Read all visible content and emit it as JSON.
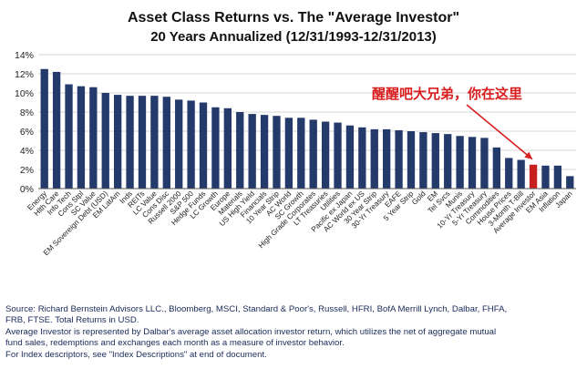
{
  "chart_data": {
    "type": "bar",
    "title": "Asset Class Returns vs. The \"Average Investor\"",
    "subtitle": "20 Years Annualized (12/31/1993-12/31/2013)",
    "xlabel": "",
    "ylabel": "",
    "ylim": [
      0,
      14
    ],
    "yticks": [
      "0%",
      "2%",
      "4%",
      "6%",
      "8%",
      "10%",
      "12%",
      "14%"
    ],
    "grid": true,
    "categories": [
      "Energy",
      "Hlth Care",
      "Info Tech",
      "Cons Stpl",
      "SC Value",
      "EM Sovereign Debt (USD)",
      "EM LatAm",
      "Inds",
      "REITs",
      "LC Value",
      "Cons Disc",
      "Russell 2000",
      "S&P 500",
      "Hedge Funds",
      "LC Growth",
      "Europe",
      "Materials",
      "US High Yield",
      "Financials",
      "10 Year Strip",
      "AC World",
      "SC Growth",
      "High Grade Corporates",
      "LT Treasuries",
      "Utilities",
      "Pacific ex Japan",
      "AC World ex US",
      "30 Year Strip",
      "30-Yr Treasury",
      "EAFE",
      "5 Year Strip",
      "Gold",
      "EM",
      "Tel Svcs",
      "Munis",
      "10-Yr Treasury",
      "5-Yr Treasury",
      "Commodities",
      "House Prices",
      "3-Month T-Bill",
      "Average Investor",
      "EM Asia",
      "Inflation",
      "Japan"
    ],
    "values": [
      12.5,
      12.2,
      10.9,
      10.7,
      10.6,
      10.0,
      9.8,
      9.7,
      9.7,
      9.7,
      9.6,
      9.3,
      9.2,
      9.0,
      8.5,
      8.4,
      8.0,
      7.8,
      7.7,
      7.6,
      7.4,
      7.4,
      7.2,
      7.0,
      6.9,
      6.6,
      6.4,
      6.2,
      6.2,
      6.1,
      6.0,
      5.9,
      5.8,
      5.7,
      5.5,
      5.4,
      5.3,
      4.3,
      3.2,
      3.0,
      2.5,
      2.4,
      2.4,
      1.3
    ],
    "highlight_index": 40,
    "bar_color": "#243a6b",
    "highlight_color": "#c8201e",
    "annotation": "醒醒吧大兄弟，你在这里",
    "annotation_color": "#d81e1e"
  },
  "footer": {
    "line1": "Source: Richard Bernstein Advisors LLC., Bloomberg, MSCI, Standard & Poor's, Russell, HFRI, BofA Merrill Lynch, Dalbar, FHFA,",
    "line2": "FRB, FTSE.  Total Returns in USD.",
    "line3": "Average Investor is represented by Dalbar's average asset allocation investor return, which utilizes the net of aggregate mutual",
    "line4": "fund sales, redemptions and exchanges each month as a measure of investor behavior.",
    "line5": "For Index descriptors, see \"Index Descriptions\" at end of document."
  }
}
